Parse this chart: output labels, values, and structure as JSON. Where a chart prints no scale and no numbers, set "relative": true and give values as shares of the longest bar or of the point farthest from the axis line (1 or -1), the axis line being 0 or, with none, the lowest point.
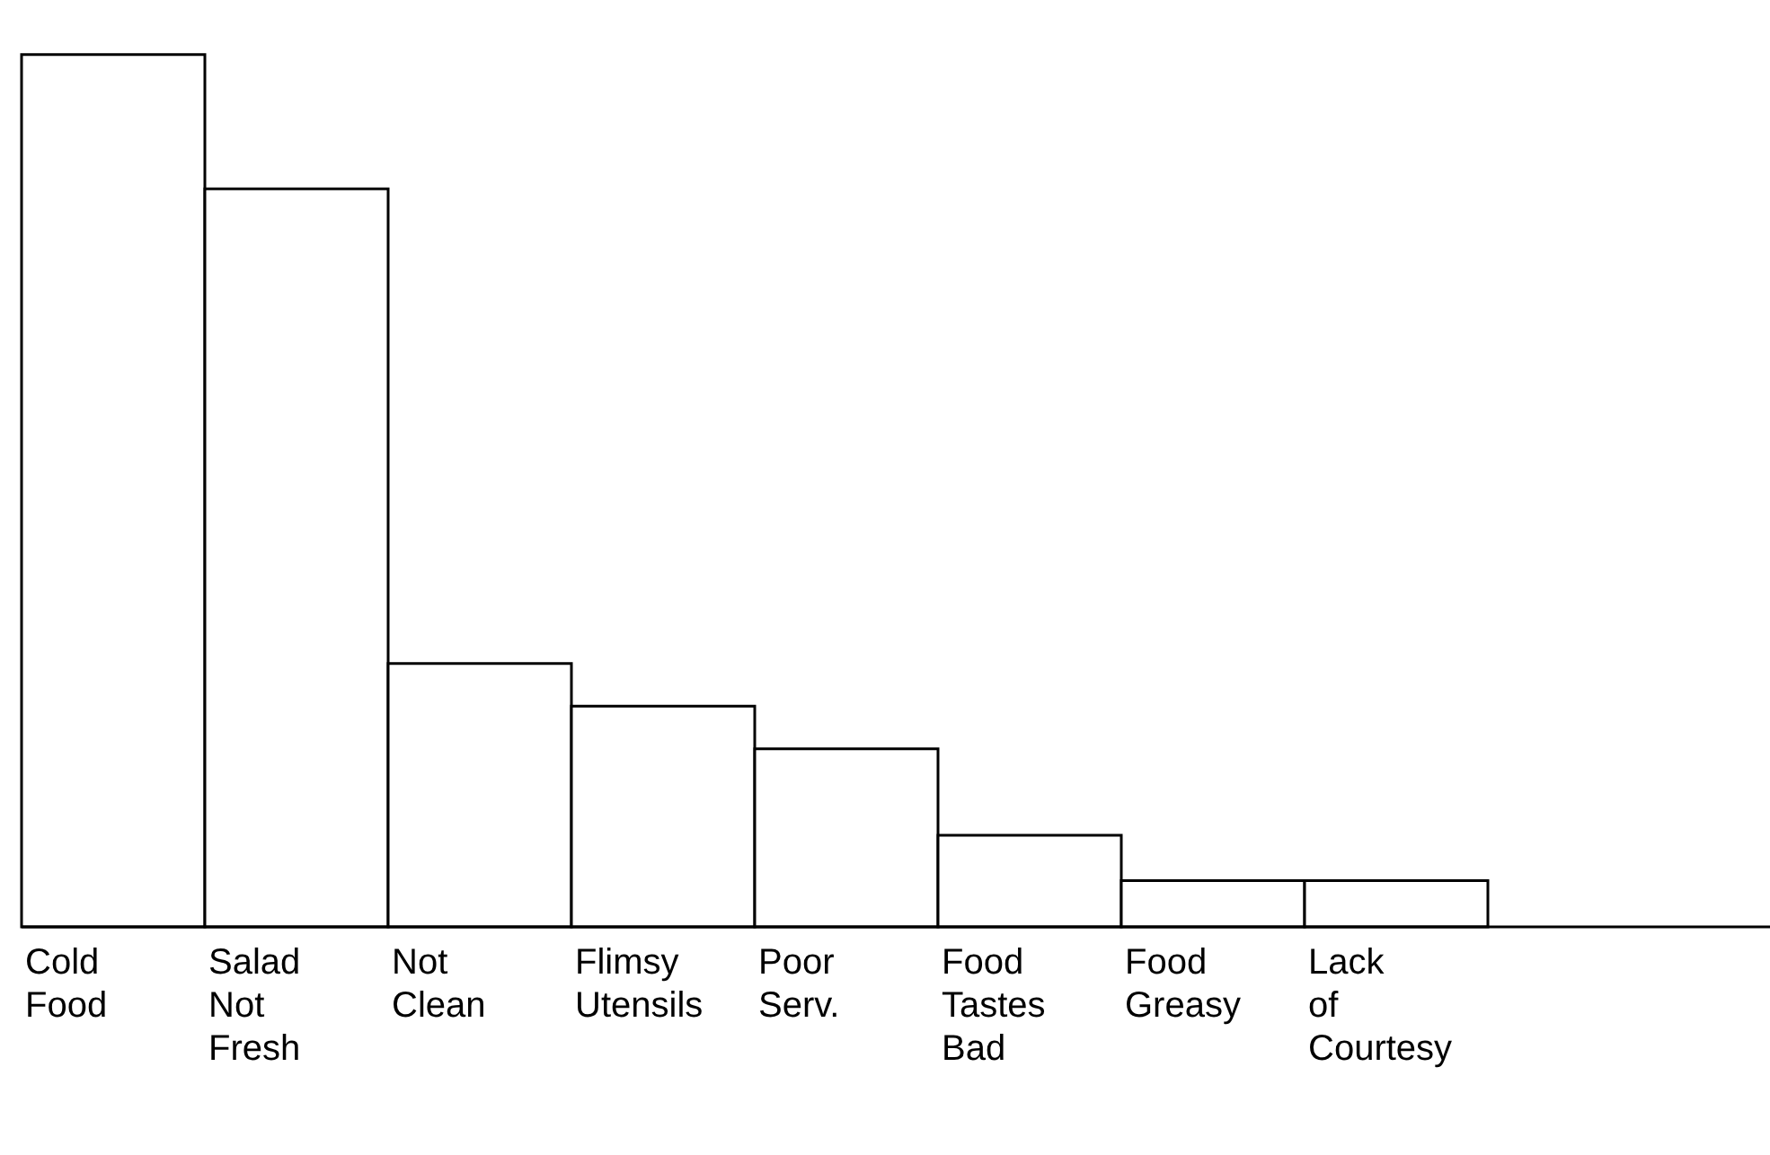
{
  "chart_data": {
    "type": "bar",
    "relative": true,
    "categories": [
      "Cold Food",
      "Salad Not Fresh",
      "Not Clean",
      "Flimsy Utensils",
      "Poor Serv.",
      "Food Tastes Bad",
      "Food Greasy",
      "Lack of Courtesy"
    ],
    "values": [
      1,
      0.846,
      0.302,
      0.253,
      0.204,
      0.105,
      0.053,
      0.053
    ],
    "color": "#ffffff"
  }
}
